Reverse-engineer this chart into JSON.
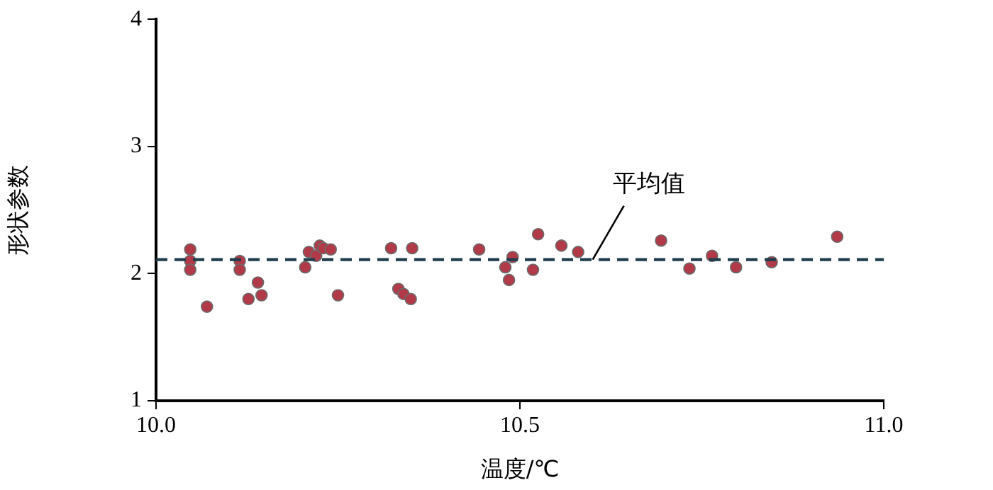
{
  "chart_data": {
    "type": "scatter",
    "xlabel": "温度/℃",
    "ylabel": "形状参数",
    "xlim": [
      10.0,
      11.0
    ],
    "xticks": [
      {
        "value": 10.0,
        "label": "10.0"
      },
      {
        "value": 10.5,
        "label": "10.5"
      },
      {
        "value": 11.0,
        "label": "11.0"
      }
    ],
    "ylim": [
      1,
      4
    ],
    "yticks": [
      1,
      2,
      3,
      4
    ],
    "grid": false,
    "legend": false,
    "marker": "circle",
    "series": [
      {
        "color": "#b23a48",
        "x": [
          10.047,
          10.047,
          10.047,
          10.07,
          10.115,
          10.115,
          10.127,
          10.14,
          10.145,
          10.205,
          10.21,
          10.22,
          10.225,
          10.23,
          10.24,
          10.25,
          10.323,
          10.352,
          10.333,
          10.34,
          10.35,
          10.444,
          10.49,
          10.48,
          10.485,
          10.518,
          10.525,
          10.557,
          10.58,
          10.694,
          10.733,
          10.764,
          10.797,
          10.846,
          10.936
        ],
        "values": [
          2.19,
          2.1,
          2.03,
          1.74,
          2.1,
          2.03,
          1.8,
          1.93,
          1.83,
          2.05,
          2.17,
          2.14,
          2.22,
          2.2,
          2.19,
          1.83,
          2.2,
          2.2,
          1.88,
          1.84,
          1.8,
          2.19,
          2.13,
          2.05,
          1.95,
          2.03,
          2.31,
          2.22,
          2.17,
          2.26,
          2.04,
          2.14,
          2.05,
          2.09,
          2.29
        ]
      }
    ],
    "ref_lines": [
      {
        "axis": "y",
        "value": 2.11,
        "label": "平均值",
        "color": "#1f3d4d",
        "line_style": "dashed"
      }
    ]
  }
}
